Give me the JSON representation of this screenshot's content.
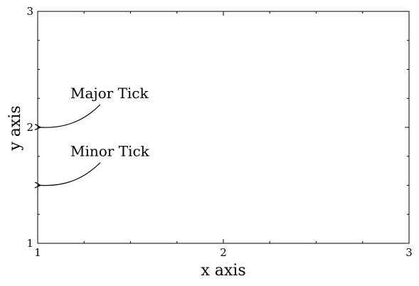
{
  "chart_data": {
    "type": "scatter",
    "title": "",
    "xlabel": "x axis",
    "ylabel": "y axis",
    "xlim": [
      1,
      3
    ],
    "ylim": [
      1,
      3
    ],
    "x_major_ticks": [
      1,
      2,
      3
    ],
    "x_major_tick_labels": [
      "1",
      "2",
      "3"
    ],
    "x_minor_ticks": [
      1.25,
      1.5,
      1.75,
      2.25,
      2.5,
      2.75
    ],
    "y_major_ticks": [
      1,
      2,
      3
    ],
    "y_major_tick_labels": [
      "1",
      "2",
      "3"
    ],
    "y_minor_ticks": [
      1.25,
      1.5,
      1.75,
      2.25,
      2.5,
      2.75
    ],
    "tick_direction": "in",
    "grid": false,
    "series": [],
    "annotations": [
      {
        "text": "Major Tick",
        "target": {
          "x": 1,
          "y": 2
        }
      },
      {
        "text": "Minor Tick",
        "target": {
          "x": 1,
          "y": 1.5
        }
      }
    ]
  }
}
